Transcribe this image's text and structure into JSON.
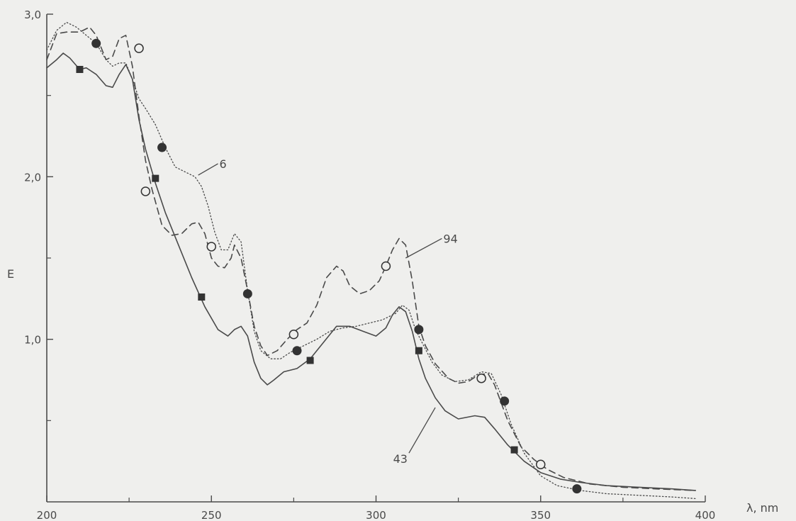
{
  "chart_data": {
    "type": "line",
    "xlabel": "λ, nm",
    "ylabel": "E",
    "xlim": [
      200,
      400
    ],
    "ylim": [
      0,
      3.0
    ],
    "x_ticks": [
      200,
      250,
      300,
      350,
      400
    ],
    "x_minor_ticks": [
      225,
      275,
      325,
      375
    ],
    "y_ticks": [
      1.0,
      2.0,
      3.0
    ],
    "y_minor_ticks": [
      0.5,
      1.5,
      2.5
    ],
    "x_tick_labels": [
      "200",
      "250",
      "300",
      "350",
      "400"
    ],
    "y_tick_labels": [
      "1,0",
      "2,0",
      "3,0"
    ],
    "grid": false,
    "series": [
      {
        "name": "43",
        "style": "solid",
        "marker": "square",
        "label_anchor": [
          318,
          0.58
        ],
        "label_at": [
          310,
          0.3
        ],
        "points": [
          [
            200,
            2.67
          ],
          [
            203,
            2.72
          ],
          [
            205,
            2.76
          ],
          [
            207,
            2.73
          ],
          [
            210,
            2.66
          ],
          [
            212,
            2.67
          ],
          [
            215,
            2.63
          ],
          [
            218,
            2.56
          ],
          [
            220,
            2.55
          ],
          [
            222,
            2.63
          ],
          [
            224,
            2.69
          ],
          [
            226,
            2.6
          ],
          [
            228,
            2.35
          ],
          [
            230,
            2.17
          ],
          [
            233,
            1.96
          ],
          [
            236,
            1.78
          ],
          [
            240,
            1.58
          ],
          [
            244,
            1.38
          ],
          [
            248,
            1.2
          ],
          [
            252,
            1.06
          ],
          [
            255,
            1.02
          ],
          [
            257,
            1.06
          ],
          [
            259,
            1.08
          ],
          [
            261,
            1.02
          ],
          [
            263,
            0.86
          ],
          [
            265,
            0.76
          ],
          [
            267,
            0.72
          ],
          [
            269,
            0.75
          ],
          [
            272,
            0.8
          ],
          [
            276,
            0.82
          ],
          [
            280,
            0.88
          ],
          [
            284,
            0.98
          ],
          [
            288,
            1.08
          ],
          [
            292,
            1.08
          ],
          [
            296,
            1.05
          ],
          [
            300,
            1.02
          ],
          [
            303,
            1.07
          ],
          [
            305,
            1.15
          ],
          [
            307,
            1.2
          ],
          [
            309,
            1.17
          ],
          [
            311,
            1.05
          ],
          [
            313,
            0.88
          ],
          [
            315,
            0.76
          ],
          [
            318,
            0.64
          ],
          [
            321,
            0.56
          ],
          [
            325,
            0.51
          ],
          [
            330,
            0.53
          ],
          [
            333,
            0.52
          ],
          [
            336,
            0.45
          ],
          [
            340,
            0.35
          ],
          [
            345,
            0.25
          ],
          [
            350,
            0.18
          ],
          [
            356,
            0.14
          ],
          [
            362,
            0.12
          ],
          [
            370,
            0.1
          ],
          [
            380,
            0.09
          ],
          [
            390,
            0.08
          ],
          [
            397,
            0.07
          ]
        ],
        "markers": [
          [
            210,
            2.66
          ],
          [
            233,
            1.99
          ],
          [
            247,
            1.26
          ],
          [
            280,
            0.87
          ],
          [
            313,
            0.93
          ],
          [
            342,
            0.32
          ]
        ]
      },
      {
        "name": "94",
        "style": "dashed",
        "marker": "open-circle",
        "label_anchor": [
          309,
          1.5
        ],
        "label_at": [
          320,
          1.62
        ],
        "points": [
          [
            200,
            2.72
          ],
          [
            203,
            2.88
          ],
          [
            206,
            2.89
          ],
          [
            210,
            2.89
          ],
          [
            213,
            2.92
          ],
          [
            215,
            2.87
          ],
          [
            218,
            2.72
          ],
          [
            220,
            2.74
          ],
          [
            222,
            2.85
          ],
          [
            224,
            2.87
          ],
          [
            226,
            2.68
          ],
          [
            228,
            2.37
          ],
          [
            230,
            2.1
          ],
          [
            232,
            1.92
          ],
          [
            235,
            1.7
          ],
          [
            238,
            1.64
          ],
          [
            241,
            1.65
          ],
          [
            244,
            1.71
          ],
          [
            246,
            1.72
          ],
          [
            248,
            1.65
          ],
          [
            250,
            1.5
          ],
          [
            252,
            1.45
          ],
          [
            254,
            1.44
          ],
          [
            256,
            1.5
          ],
          [
            257,
            1.58
          ],
          [
            259,
            1.5
          ],
          [
            261,
            1.3
          ],
          [
            263,
            1.08
          ],
          [
            265,
            0.96
          ],
          [
            267,
            0.9
          ],
          [
            270,
            0.93
          ],
          [
            273,
            1.0
          ],
          [
            276,
            1.06
          ],
          [
            279,
            1.1
          ],
          [
            282,
            1.21
          ],
          [
            285,
            1.38
          ],
          [
            288,
            1.45
          ],
          [
            290,
            1.42
          ],
          [
            292,
            1.33
          ],
          [
            295,
            1.28
          ],
          [
            298,
            1.3
          ],
          [
            301,
            1.36
          ],
          [
            303,
            1.45
          ],
          [
            305,
            1.55
          ],
          [
            307,
            1.62
          ],
          [
            309,
            1.58
          ],
          [
            311,
            1.36
          ],
          [
            313,
            1.08
          ],
          [
            315,
            0.96
          ],
          [
            318,
            0.85
          ],
          [
            322,
            0.76
          ],
          [
            325,
            0.73
          ],
          [
            328,
            0.74
          ],
          [
            331,
            0.78
          ],
          [
            334,
            0.79
          ],
          [
            336,
            0.72
          ],
          [
            340,
            0.5
          ],
          [
            344,
            0.34
          ],
          [
            348,
            0.26
          ],
          [
            352,
            0.2
          ],
          [
            357,
            0.15
          ],
          [
            365,
            0.11
          ],
          [
            375,
            0.09
          ],
          [
            385,
            0.08
          ],
          [
            397,
            0.07
          ]
        ],
        "markers": [
          [
            228,
            2.79
          ],
          [
            230,
            1.91
          ],
          [
            250,
            1.57
          ],
          [
            275,
            1.03
          ],
          [
            303,
            1.45
          ],
          [
            332,
            0.76
          ],
          [
            350,
            0.23
          ]
        ]
      },
      {
        "name": "6",
        "style": "dotted",
        "marker": "filled-circle",
        "label_anchor": [
          246,
          2.01
        ],
        "label_at": [
          252,
          2.08
        ],
        "points": [
          [
            200,
            2.78
          ],
          [
            203,
            2.9
          ],
          [
            206,
            2.95
          ],
          [
            209,
            2.92
          ],
          [
            212,
            2.87
          ],
          [
            215,
            2.82
          ],
          [
            218,
            2.72
          ],
          [
            220,
            2.68
          ],
          [
            222,
            2.7
          ],
          [
            224,
            2.7
          ],
          [
            226,
            2.6
          ],
          [
            228,
            2.48
          ],
          [
            230,
            2.42
          ],
          [
            233,
            2.32
          ],
          [
            236,
            2.18
          ],
          [
            239,
            2.06
          ],
          [
            242,
            2.03
          ],
          [
            245,
            2.0
          ],
          [
            247,
            1.94
          ],
          [
            249,
            1.82
          ],
          [
            251,
            1.66
          ],
          [
            253,
            1.55
          ],
          [
            255,
            1.55
          ],
          [
            257,
            1.65
          ],
          [
            259,
            1.6
          ],
          [
            261,
            1.3
          ],
          [
            263,
            1.05
          ],
          [
            265,
            0.93
          ],
          [
            268,
            0.88
          ],
          [
            271,
            0.88
          ],
          [
            274,
            0.92
          ],
          [
            278,
            0.96
          ],
          [
            282,
            1.0
          ],
          [
            286,
            1.05
          ],
          [
            290,
            1.07
          ],
          [
            294,
            1.08
          ],
          [
            298,
            1.1
          ],
          [
            302,
            1.12
          ],
          [
            306,
            1.16
          ],
          [
            308,
            1.21
          ],
          [
            310,
            1.18
          ],
          [
            312,
            1.06
          ],
          [
            314,
            0.98
          ],
          [
            317,
            0.86
          ],
          [
            320,
            0.78
          ],
          [
            324,
            0.74
          ],
          [
            328,
            0.75
          ],
          [
            332,
            0.8
          ],
          [
            335,
            0.79
          ],
          [
            338,
            0.66
          ],
          [
            341,
            0.48
          ],
          [
            345,
            0.3
          ],
          [
            350,
            0.16
          ],
          [
            355,
            0.1
          ],
          [
            362,
            0.07
          ],
          [
            370,
            0.05
          ],
          [
            380,
            0.04
          ],
          [
            390,
            0.03
          ],
          [
            397,
            0.02
          ]
        ],
        "markers": [
          [
            215,
            2.82
          ],
          [
            235,
            2.18
          ],
          [
            261,
            1.28
          ],
          [
            276,
            0.93
          ],
          [
            313,
            1.06
          ],
          [
            339,
            0.62
          ],
          [
            361,
            0.08
          ]
        ]
      }
    ]
  }
}
